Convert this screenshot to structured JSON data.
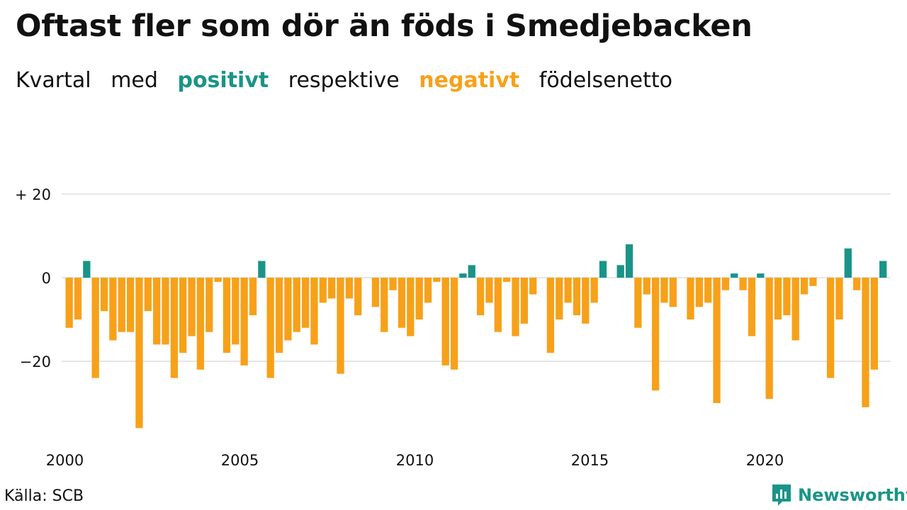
{
  "title": "Oftast fler som dör än föds i Smedjebacken",
  "subtitle": {
    "w1": "Kvartal",
    "w2": "med",
    "positive": "positivt",
    "w3": "respektive",
    "negative": "negativt",
    "w4": "födelsenetto"
  },
  "source": "Källa: SCB",
  "brand": "Newsworthy",
  "colors": {
    "positive": "#1a9488",
    "negative": "#f7a11a",
    "grid": "#dddddd",
    "text": "#111111"
  },
  "chart_data": {
    "type": "bar",
    "x_start": 2000,
    "x_interval": "quarter",
    "ylim": [
      -37,
      25
    ],
    "yticks": [
      {
        "value": 20,
        "label": "+ 20"
      },
      {
        "value": 0,
        "label": "0"
      },
      {
        "value": -20,
        "label": "−20"
      }
    ],
    "xticks": [
      "2000",
      "2005",
      "2010",
      "2015",
      "2020"
    ],
    "grid": true,
    "values": [
      -12,
      -10,
      4,
      -24,
      -8,
      -15,
      -13,
      -13,
      -36,
      -8,
      -16,
      -16,
      -24,
      -18,
      -14,
      -22,
      -13,
      -1,
      -18,
      -16,
      -21,
      -9,
      4,
      -24,
      -18,
      -15,
      -13,
      -12,
      -16,
      -6,
      -5,
      -23,
      -5,
      -9,
      0,
      -7,
      -13,
      -3,
      -12,
      -14,
      -10,
      -6,
      -1,
      -21,
      -22,
      1,
      3,
      -9,
      -6,
      -13,
      -1,
      -14,
      -11,
      -4,
      0,
      -18,
      -10,
      -6,
      -9,
      -11,
      -6,
      4,
      0,
      3,
      8,
      -12,
      -4,
      -27,
      -6,
      -7,
      0,
      -10,
      -7,
      -6,
      -30,
      -3,
      1,
      -3,
      -14,
      1,
      -29,
      -10,
      -9,
      -15,
      -4,
      -2,
      0,
      -24,
      -10,
      7,
      -3,
      -31,
      -22,
      4
    ]
  }
}
